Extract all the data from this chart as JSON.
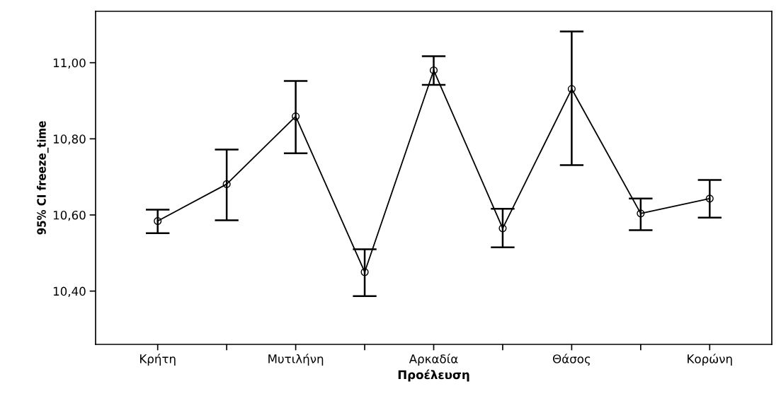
{
  "chart_data": {
    "type": "line",
    "xlabel": "Προέλευση",
    "ylabel": "95% CI freeze_time",
    "categories": [
      "Κρήτη",
      null,
      "Μυτιλήνη",
      null,
      "Αρκαδία",
      null,
      "Θάσος",
      null,
      "Κορώνη"
    ],
    "series": [
      {
        "color": "#000000",
        "values": [
          10.584,
          10.681,
          10.859,
          10.45,
          10.98,
          10.565,
          10.931,
          10.604,
          10.643
        ],
        "errors": [
          [
            10.552,
            10.614
          ],
          [
            10.586,
            10.772
          ],
          [
            10.762,
            10.952
          ],
          [
            10.387,
            10.51
          ],
          [
            10.942,
            11.017
          ],
          [
            10.515,
            10.616
          ],
          [
            10.731,
            11.082
          ],
          [
            10.56,
            10.643
          ],
          [
            10.593,
            10.692
          ]
        ]
      }
    ],
    "ylim": [
      10.26,
      11.135
    ],
    "yticks": [
      {
        "value": 10.4,
        "label": "10,40"
      },
      {
        "value": 10.6,
        "label": "10,60"
      },
      {
        "value": 10.8,
        "label": "10,80"
      },
      {
        "value": 11.0,
        "label": "11,00"
      }
    ],
    "marker": "circle",
    "line_style": "solid",
    "grid": false,
    "legend": false
  }
}
